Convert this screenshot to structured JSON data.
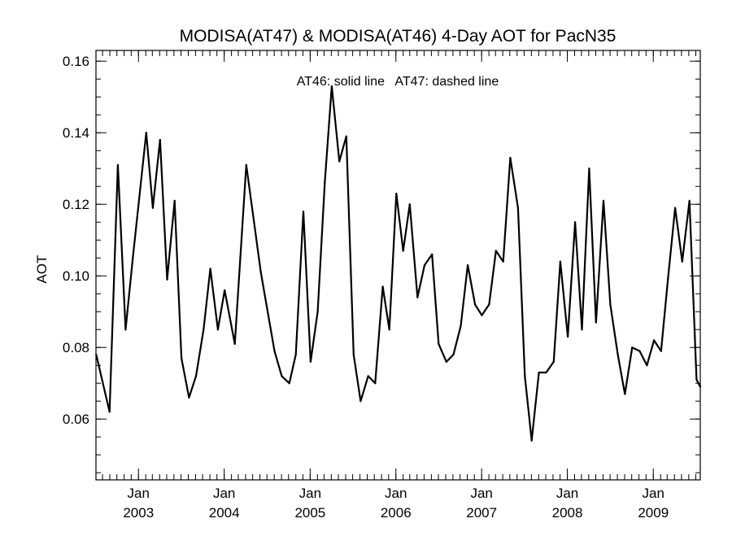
{
  "chart_data": {
    "type": "line",
    "title": "MODISA(AT47) & MODISA(AT46) 4-Day AOT for PacN35",
    "annotation": "AT46: solid line   AT47: dashed line",
    "xlabel": "",
    "ylabel": "AOT",
    "xlim": [
      "2002-07-04",
      "2009-07-20"
    ],
    "ylim": [
      0.043,
      0.163
    ],
    "y_ticks": [
      0.06,
      0.08,
      0.1,
      0.12,
      0.14,
      0.16
    ],
    "y_tick_labels": [
      "0.06",
      "0.08",
      "0.10",
      "0.12",
      "0.14",
      "0.16"
    ],
    "y_minor_step": 0.005,
    "x_ticks": [
      {
        "date": "2003-01-01",
        "month": "Jan",
        "year": "2003"
      },
      {
        "date": "2004-01-01",
        "month": "Jan",
        "year": "2004"
      },
      {
        "date": "2005-01-01",
        "month": "Jan",
        "year": "2005"
      },
      {
        "date": "2006-01-01",
        "month": "Jan",
        "year": "2006"
      },
      {
        "date": "2007-01-01",
        "month": "Jan",
        "year": "2007"
      },
      {
        "date": "2008-01-01",
        "month": "Jan",
        "year": "2008"
      },
      {
        "date": "2009-01-01",
        "month": "Jan",
        "year": "2009"
      }
    ],
    "grid": false,
    "series": [
      {
        "name": "AT46",
        "style": "solid",
        "x": [
          "2002-07-05",
          "2002-08-31",
          "2002-10-05",
          "2002-11-07",
          "2002-12-08",
          "2003-02-03",
          "2003-03-03",
          "2003-04-03",
          "2003-05-03",
          "2003-06-04",
          "2003-07-03",
          "2003-08-04",
          "2003-09-03",
          "2003-10-05",
          "2003-11-03",
          "2003-12-05",
          "2004-01-03",
          "2004-02-15",
          "2004-04-04",
          "2004-06-05",
          "2004-08-02",
          "2004-09-02",
          "2004-10-04",
          "2004-11-01",
          "2004-12-03",
          "2005-01-03",
          "2005-02-02",
          "2005-03-04",
          "2005-04-03",
          "2005-05-05",
          "2005-06-04",
          "2005-07-05",
          "2005-08-04",
          "2005-09-05",
          "2005-10-05",
          "2005-11-06",
          "2005-12-04",
          "2006-01-03",
          "2006-02-01",
          "2006-03-01",
          "2006-04-03",
          "2006-05-03",
          "2006-06-04",
          "2006-07-02",
          "2006-08-04",
          "2006-09-03",
          "2006-10-04",
          "2006-11-03",
          "2006-12-04",
          "2007-01-02",
          "2007-02-02",
          "2007-03-03",
          "2007-04-03",
          "2007-05-03",
          "2007-06-05",
          "2007-07-04",
          "2007-08-02",
          "2007-09-02",
          "2007-10-03",
          "2007-11-04",
          "2007-12-02",
          "2008-01-03",
          "2008-02-03",
          "2008-03-03",
          "2008-04-03",
          "2008-05-02",
          "2008-06-03",
          "2008-07-02",
          "2008-08-03",
          "2008-09-02",
          "2008-10-03",
          "2008-11-04",
          "2008-12-05",
          "2009-01-04",
          "2009-02-03",
          "2009-03-04",
          "2009-04-04",
          "2009-05-04",
          "2009-06-04",
          "2009-07-04",
          "2009-07-20"
        ],
        "y": [
          0.078,
          0.062,
          0.131,
          0.085,
          0.105,
          0.14,
          0.119,
          0.138,
          0.099,
          0.121,
          0.077,
          0.066,
          0.072,
          0.085,
          0.102,
          0.085,
          0.096,
          0.081,
          0.131,
          0.101,
          0.079,
          0.072,
          0.07,
          0.078,
          0.118,
          0.076,
          0.09,
          0.126,
          0.153,
          0.132,
          0.139,
          0.078,
          0.065,
          0.072,
          0.07,
          0.097,
          0.085,
          0.123,
          0.107,
          0.12,
          0.094,
          0.103,
          0.106,
          0.081,
          0.076,
          0.078,
          0.086,
          0.103,
          0.092,
          0.089,
          0.092,
          0.107,
          0.104,
          0.133,
          0.119,
          0.072,
          0.054,
          0.073,
          0.073,
          0.076,
          0.104,
          0.083,
          0.115,
          0.085,
          0.13,
          0.087,
          0.121,
          0.092,
          0.078,
          0.067,
          0.08,
          0.079,
          0.075,
          0.082,
          0.079,
          0.099,
          0.119,
          0.104,
          0.121,
          0.071,
          0.069
        ]
      }
    ]
  }
}
